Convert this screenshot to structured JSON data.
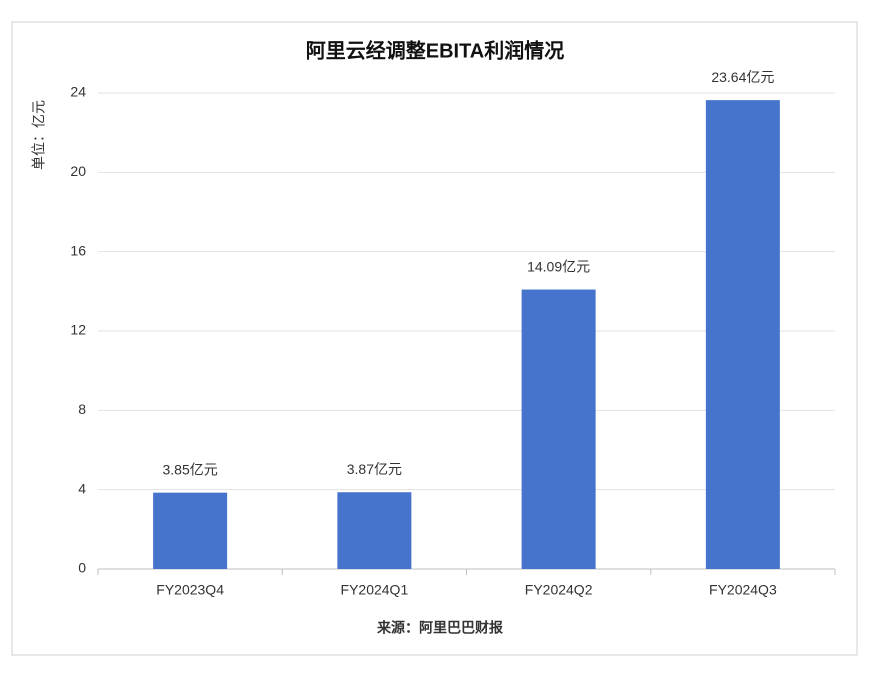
{
  "chart_data": {
    "type": "bar",
    "title": "阿里云经调整EBITA利润情况",
    "y_label": "单位：亿元",
    "source": "来源：阿里巴巴财报",
    "categories": [
      "FY2023Q4",
      "FY2024Q1",
      "FY2024Q2",
      "FY2024Q3"
    ],
    "values": [
      3.85,
      3.87,
      14.09,
      23.64
    ],
    "value_labels": [
      "3.85亿元",
      "3.87亿元",
      "14.09亿元",
      "23.64亿元"
    ],
    "color": "#4674cc",
    "ylim": [
      0,
      24
    ],
    "yticks": [
      0,
      4,
      8,
      12,
      16,
      20,
      24
    ],
    "grid": true
  }
}
